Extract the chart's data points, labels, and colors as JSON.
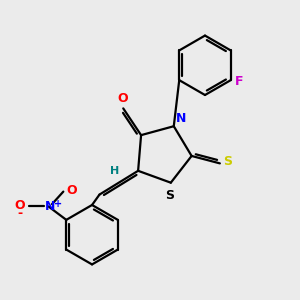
{
  "background_color": "#ebebeb",
  "bond_color": "#000000",
  "atom_colors": {
    "O": "#ff0000",
    "N": "#0000ff",
    "S_exo": "#cccc00",
    "S_ring": "#000000",
    "F": "#cc00cc",
    "H": "#008080",
    "NO2_N": "#0000ff",
    "NO2_O": "#ff0000"
  },
  "figsize": [
    3.0,
    3.0
  ],
  "dpi": 100,
  "lw": 1.6
}
